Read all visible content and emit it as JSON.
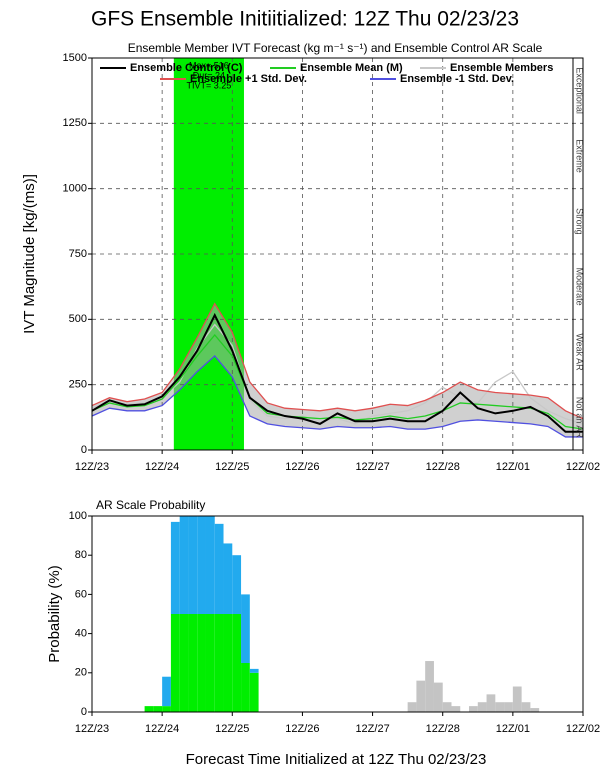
{
  "title": "GFS Ensemble Initiitialized: 12Z Thu 02/23/23",
  "chart_data": [
    {
      "type": "line",
      "subtitle": "Ensemble Member IVT Forecast (kg m⁻¹ s⁻¹) and Ensemble Control AR Scale",
      "ylabel": "IVT Magnitude [kg/(ms)]",
      "x": [
        0,
        6,
        12,
        18,
        24,
        30,
        36,
        42,
        48,
        54,
        60,
        66,
        72,
        78,
        84,
        90,
        96,
        102,
        108,
        114,
        120,
        126,
        132,
        138,
        144,
        150,
        156,
        162,
        168
      ],
      "xlim": [
        0,
        168
      ],
      "xticks": [
        {
          "value": 0,
          "label": "12Z/23"
        },
        {
          "value": 24,
          "label": "12Z/24"
        },
        {
          "value": 48,
          "label": "12Z/25"
        },
        {
          "value": 72,
          "label": "12Z/26"
        },
        {
          "value": 96,
          "label": "12Z/27"
        },
        {
          "value": 120,
          "label": "12Z/28"
        },
        {
          "value": 144,
          "label": "12Z/01"
        },
        {
          "value": 168,
          "label": "12Z/02"
        }
      ],
      "ylim": [
        0,
        1500
      ],
      "yticks": [
        0,
        250,
        500,
        750,
        1000,
        1250,
        1500
      ],
      "grid": true,
      "ar_scale": [
        "Not an AR",
        "Weak AR",
        "Moderate",
        "Strong",
        "Extreme",
        "Exceptional"
      ],
      "highlight": {
        "x": [
          28,
          52
        ],
        "color": "#00ee00",
        "annotations": [
          "Max= 516",
          "Dur= 24",
          "TIVT= 3.25"
        ]
      },
      "series": [
        {
          "name": "Ensemble Members",
          "color": "#c8c8c8",
          "values": [
            160,
            185,
            175,
            180,
            200,
            260,
            390,
            480,
            400,
            190,
            130,
            120,
            130,
            110,
            120,
            100,
            130,
            140,
            150,
            180,
            240,
            200,
            180,
            260,
            300,
            200,
            150,
            120,
            100
          ]
        },
        {
          "name": "Ensemble +1 Std. Dev.",
          "color": "#e05050",
          "values": [
            170,
            200,
            185,
            195,
            220,
            310,
            430,
            560,
            450,
            260,
            180,
            160,
            155,
            150,
            160,
            150,
            160,
            175,
            170,
            190,
            220,
            260,
            230,
            220,
            215,
            210,
            200,
            150,
            120
          ]
        },
        {
          "name": "Ensemble -1 Std. Dev.",
          "color": "#5050e0",
          "values": [
            130,
            160,
            150,
            150,
            170,
            230,
            300,
            360,
            280,
            130,
            100,
            90,
            85,
            80,
            90,
            85,
            85,
            90,
            80,
            80,
            90,
            110,
            115,
            110,
            105,
            100,
            90,
            50,
            50
          ]
        },
        {
          "name": "Ensemble Mean (M)",
          "color": "#22cc22",
          "values": [
            150,
            180,
            165,
            170,
            195,
            270,
            360,
            440,
            360,
            200,
            140,
            130,
            125,
            120,
            125,
            115,
            120,
            130,
            120,
            130,
            150,
            180,
            175,
            170,
            165,
            160,
            140,
            90,
            80
          ]
        },
        {
          "name": "Ensemble Control (C)",
          "color": "#000000",
          "values": [
            150,
            190,
            170,
            175,
            205,
            280,
            380,
            516,
            380,
            200,
            150,
            130,
            120,
            100,
            140,
            110,
            110,
            120,
            110,
            110,
            150,
            220,
            160,
            140,
            150,
            165,
            130,
            70,
            70
          ]
        }
      ]
    },
    {
      "type": "stacked_bar",
      "title": "AR Scale Probability",
      "ylabel": "Probability (%)",
      "xlabel": "Forecast Time Initialized at 12Z Thu 02/23/23",
      "bin_width": 3,
      "x": [
        18,
        21,
        24,
        27,
        30,
        33,
        36,
        39,
        42,
        45,
        48,
        51,
        54,
        57,
        60,
        63,
        66,
        69,
        72,
        75,
        78,
        81,
        84,
        87,
        90,
        93,
        96,
        99,
        102,
        105,
        108,
        111,
        114,
        117,
        120,
        123,
        126,
        129,
        132,
        135,
        138,
        141,
        144,
        147,
        150
      ],
      "xlim": [
        0,
        168
      ],
      "xticks": [
        {
          "value": 0,
          "label": "12Z/23"
        },
        {
          "value": 24,
          "label": "12Z/24"
        },
        {
          "value": 48,
          "label": "12Z/25"
        },
        {
          "value": 72,
          "label": "12Z/26"
        },
        {
          "value": 96,
          "label": "12Z/27"
        },
        {
          "value": 120,
          "label": "12Z/28"
        },
        {
          "value": 144,
          "label": "12Z/01"
        },
        {
          "value": 168,
          "label": "12Z/02"
        }
      ],
      "ylim": [
        0,
        100
      ],
      "yticks": [
        0,
        20,
        40,
        60,
        80,
        100
      ],
      "series": [
        {
          "color": "#00ee00",
          "values": [
            3,
            3,
            3,
            50,
            50,
            50,
            50,
            50,
            50,
            50,
            50,
            25,
            20,
            0,
            0,
            0,
            0,
            0,
            0,
            0,
            0,
            0,
            0,
            0,
            0,
            0,
            0,
            0,
            0,
            0,
            0,
            0,
            0,
            0,
            0,
            0,
            0,
            0,
            0,
            0,
            0,
            0,
            0,
            0,
            0
          ]
        },
        {
          "color": "#22aaee",
          "values": [
            0,
            0,
            15,
            47,
            50,
            50,
            50,
            50,
            46,
            36,
            30,
            35,
            2,
            0,
            0,
            0,
            0,
            0,
            0,
            0,
            0,
            0,
            0,
            0,
            0,
            0,
            0,
            0,
            0,
            0,
            0,
            0,
            0,
            0,
            0,
            0,
            0,
            0,
            0,
            0,
            0,
            0,
            0,
            0,
            0
          ]
        },
        {
          "color": "#c4c4c4",
          "values": [
            0,
            0,
            0,
            0,
            0,
            0,
            0,
            0,
            0,
            0,
            0,
            0,
            0,
            0,
            0,
            0,
            0,
            0,
            0,
            0,
            0,
            0,
            0,
            0,
            0,
            0,
            0,
            0,
            0,
            0,
            5,
            16,
            26,
            15,
            5,
            3,
            0,
            3,
            5,
            9,
            5,
            5,
            13,
            5,
            2
          ]
        }
      ]
    }
  ]
}
